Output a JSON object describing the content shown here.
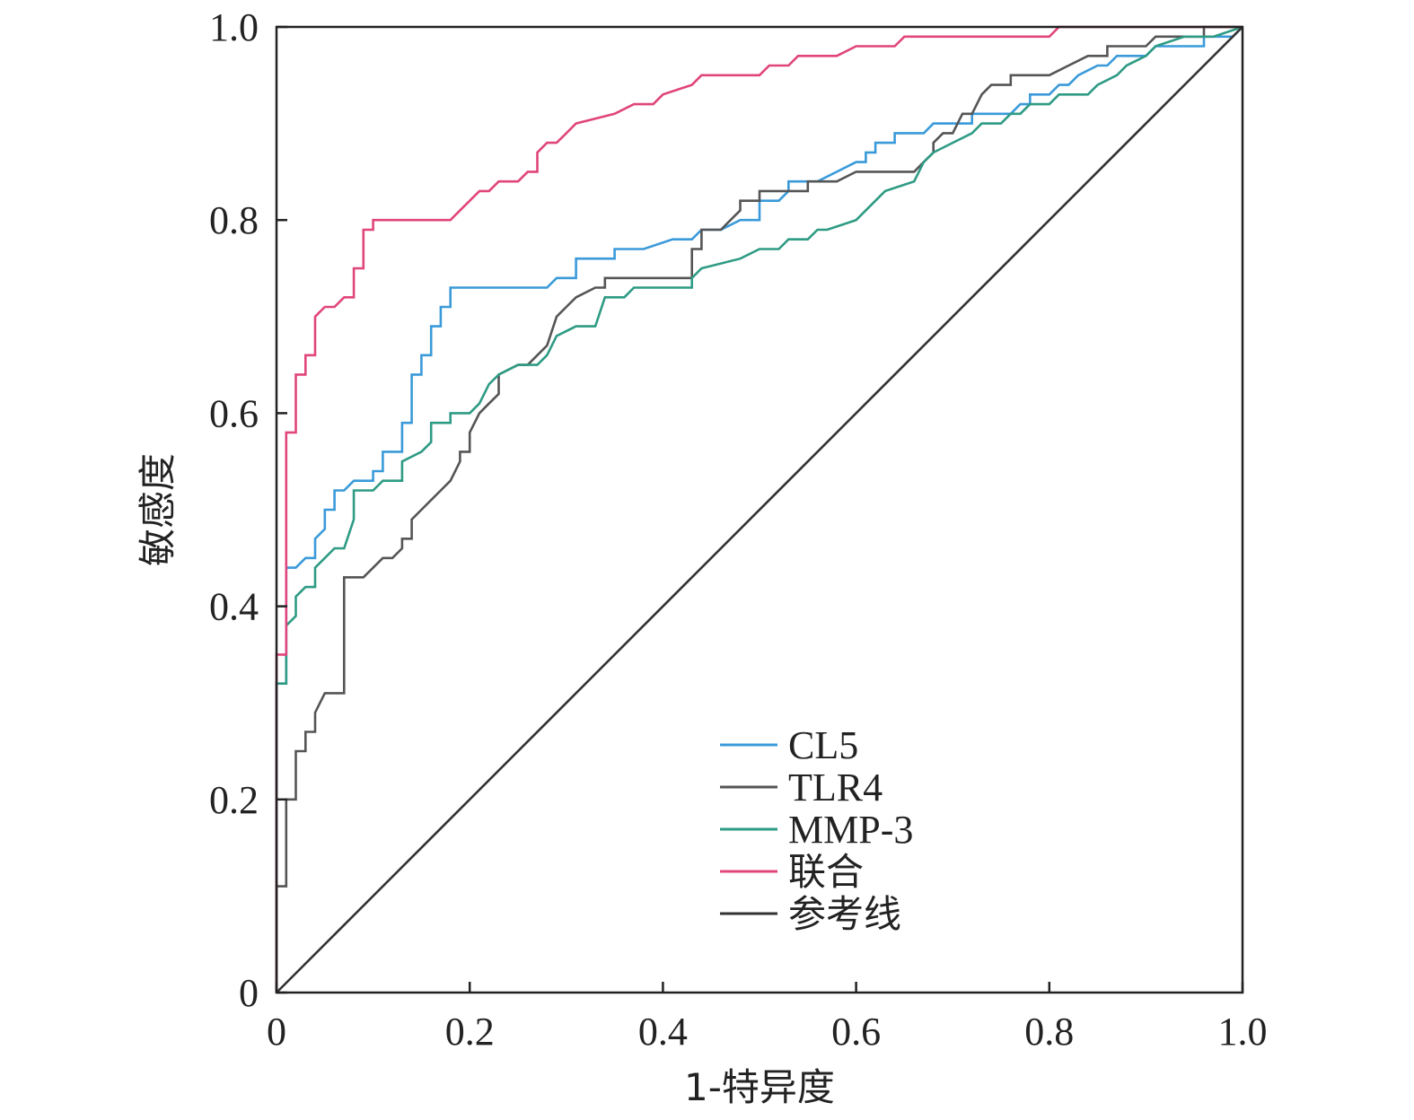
{
  "chart_data": {
    "type": "line",
    "title": "",
    "xlabel": "1-特异度",
    "ylabel": "敏感度",
    "xlim": [
      0,
      1
    ],
    "ylim": [
      0,
      1
    ],
    "x_ticks": [
      "0",
      "0.2",
      "0.4",
      "0.6",
      "0.8",
      "1.0"
    ],
    "y_ticks": [
      "0",
      "0.2",
      "0.4",
      "0.6",
      "0.8",
      "1.0"
    ],
    "grid": false,
    "legend_position": "bottom-center",
    "series": [
      {
        "name": "CL5",
        "color": "#3a9ad9",
        "points": [
          [
            0,
            0
          ],
          [
            0,
            0.32
          ],
          [
            0.01,
            0.32
          ],
          [
            0.01,
            0.44
          ],
          [
            0.02,
            0.44
          ],
          [
            0.03,
            0.45
          ],
          [
            0.04,
            0.45
          ],
          [
            0.04,
            0.47
          ],
          [
            0.05,
            0.48
          ],
          [
            0.05,
            0.5
          ],
          [
            0.06,
            0.5
          ],
          [
            0.06,
            0.52
          ],
          [
            0.07,
            0.52
          ],
          [
            0.08,
            0.53
          ],
          [
            0.1,
            0.53
          ],
          [
            0.1,
            0.54
          ],
          [
            0.11,
            0.54
          ],
          [
            0.11,
            0.56
          ],
          [
            0.13,
            0.56
          ],
          [
            0.13,
            0.59
          ],
          [
            0.14,
            0.59
          ],
          [
            0.14,
            0.64
          ],
          [
            0.15,
            0.64
          ],
          [
            0.15,
            0.66
          ],
          [
            0.16,
            0.66
          ],
          [
            0.16,
            0.69
          ],
          [
            0.17,
            0.69
          ],
          [
            0.17,
            0.71
          ],
          [
            0.18,
            0.71
          ],
          [
            0.18,
            0.73
          ],
          [
            0.28,
            0.73
          ],
          [
            0.29,
            0.74
          ],
          [
            0.31,
            0.74
          ],
          [
            0.31,
            0.76
          ],
          [
            0.35,
            0.76
          ],
          [
            0.35,
            0.77
          ],
          [
            0.38,
            0.77
          ],
          [
            0.41,
            0.78
          ],
          [
            0.43,
            0.78
          ],
          [
            0.44,
            0.79
          ],
          [
            0.46,
            0.79
          ],
          [
            0.48,
            0.8
          ],
          [
            0.5,
            0.8
          ],
          [
            0.5,
            0.82
          ],
          [
            0.52,
            0.82
          ],
          [
            0.53,
            0.83
          ],
          [
            0.53,
            0.84
          ],
          [
            0.54,
            0.84
          ],
          [
            0.56,
            0.84
          ],
          [
            0.58,
            0.85
          ],
          [
            0.6,
            0.86
          ],
          [
            0.61,
            0.86
          ],
          [
            0.61,
            0.87
          ],
          [
            0.62,
            0.87
          ],
          [
            0.62,
            0.88
          ],
          [
            0.64,
            0.88
          ],
          [
            0.64,
            0.89
          ],
          [
            0.66,
            0.89
          ],
          [
            0.67,
            0.89
          ],
          [
            0.68,
            0.9
          ],
          [
            0.72,
            0.9
          ],
          [
            0.72,
            0.91
          ],
          [
            0.76,
            0.91
          ],
          [
            0.77,
            0.92
          ],
          [
            0.78,
            0.92
          ],
          [
            0.78,
            0.93
          ],
          [
            0.8,
            0.93
          ],
          [
            0.81,
            0.94
          ],
          [
            0.82,
            0.94
          ],
          [
            0.83,
            0.95
          ],
          [
            0.85,
            0.96
          ],
          [
            0.86,
            0.96
          ],
          [
            0.87,
            0.97
          ],
          [
            0.9,
            0.97
          ],
          [
            0.91,
            0.98
          ],
          [
            0.96,
            0.98
          ],
          [
            0.96,
            0.99
          ],
          [
            0.99,
            0.99
          ],
          [
            1,
            1
          ]
        ]
      },
      {
        "name": "TLR4",
        "color": "#555555",
        "points": [
          [
            0,
            0
          ],
          [
            0,
            0.11
          ],
          [
            0.01,
            0.11
          ],
          [
            0.01,
            0.2
          ],
          [
            0.02,
            0.2
          ],
          [
            0.02,
            0.25
          ],
          [
            0.03,
            0.25
          ],
          [
            0.03,
            0.27
          ],
          [
            0.04,
            0.27
          ],
          [
            0.04,
            0.29
          ],
          [
            0.05,
            0.31
          ],
          [
            0.07,
            0.31
          ],
          [
            0.07,
            0.43
          ],
          [
            0.09,
            0.43
          ],
          [
            0.1,
            0.44
          ],
          [
            0.11,
            0.45
          ],
          [
            0.12,
            0.45
          ],
          [
            0.13,
            0.46
          ],
          [
            0.13,
            0.47
          ],
          [
            0.14,
            0.47
          ],
          [
            0.14,
            0.49
          ],
          [
            0.15,
            0.5
          ],
          [
            0.16,
            0.51
          ],
          [
            0.17,
            0.52
          ],
          [
            0.18,
            0.53
          ],
          [
            0.19,
            0.55
          ],
          [
            0.19,
            0.56
          ],
          [
            0.2,
            0.56
          ],
          [
            0.2,
            0.58
          ],
          [
            0.21,
            0.6
          ],
          [
            0.22,
            0.61
          ],
          [
            0.23,
            0.62
          ],
          [
            0.23,
            0.64
          ],
          [
            0.25,
            0.65
          ],
          [
            0.26,
            0.65
          ],
          [
            0.27,
            0.66
          ],
          [
            0.28,
            0.67
          ],
          [
            0.29,
            0.7
          ],
          [
            0.3,
            0.71
          ],
          [
            0.31,
            0.72
          ],
          [
            0.33,
            0.73
          ],
          [
            0.34,
            0.73
          ],
          [
            0.34,
            0.74
          ],
          [
            0.39,
            0.74
          ],
          [
            0.43,
            0.74
          ],
          [
            0.43,
            0.77
          ],
          [
            0.44,
            0.77
          ],
          [
            0.44,
            0.79
          ],
          [
            0.46,
            0.79
          ],
          [
            0.47,
            0.8
          ],
          [
            0.48,
            0.81
          ],
          [
            0.48,
            0.82
          ],
          [
            0.5,
            0.82
          ],
          [
            0.5,
            0.83
          ],
          [
            0.55,
            0.83
          ],
          [
            0.55,
            0.84
          ],
          [
            0.58,
            0.84
          ],
          [
            0.6,
            0.85
          ],
          [
            0.66,
            0.85
          ],
          [
            0.67,
            0.86
          ],
          [
            0.68,
            0.87
          ],
          [
            0.68,
            0.88
          ],
          [
            0.69,
            0.89
          ],
          [
            0.7,
            0.89
          ],
          [
            0.71,
            0.91
          ],
          [
            0.72,
            0.91
          ],
          [
            0.73,
            0.93
          ],
          [
            0.74,
            0.94
          ],
          [
            0.76,
            0.94
          ],
          [
            0.76,
            0.95
          ],
          [
            0.8,
            0.95
          ],
          [
            0.82,
            0.96
          ],
          [
            0.84,
            0.97
          ],
          [
            0.86,
            0.97
          ],
          [
            0.86,
            0.98
          ],
          [
            0.9,
            0.98
          ],
          [
            0.91,
            0.99
          ],
          [
            0.96,
            0.99
          ],
          [
            0.96,
            1
          ],
          [
            1,
            1
          ]
        ]
      },
      {
        "name": "MMP-3",
        "color": "#2e9b84",
        "points": [
          [
            0,
            0
          ],
          [
            0,
            0.32
          ],
          [
            0.01,
            0.32
          ],
          [
            0.01,
            0.38
          ],
          [
            0.02,
            0.39
          ],
          [
            0.02,
            0.41
          ],
          [
            0.03,
            0.42
          ],
          [
            0.04,
            0.42
          ],
          [
            0.04,
            0.44
          ],
          [
            0.05,
            0.45
          ],
          [
            0.06,
            0.46
          ],
          [
            0.07,
            0.46
          ],
          [
            0.08,
            0.49
          ],
          [
            0.08,
            0.52
          ],
          [
            0.1,
            0.52
          ],
          [
            0.11,
            0.53
          ],
          [
            0.13,
            0.53
          ],
          [
            0.13,
            0.55
          ],
          [
            0.15,
            0.56
          ],
          [
            0.16,
            0.57
          ],
          [
            0.16,
            0.59
          ],
          [
            0.18,
            0.59
          ],
          [
            0.18,
            0.6
          ],
          [
            0.2,
            0.6
          ],
          [
            0.21,
            0.61
          ],
          [
            0.22,
            0.63
          ],
          [
            0.23,
            0.64
          ],
          [
            0.25,
            0.65
          ],
          [
            0.27,
            0.65
          ],
          [
            0.28,
            0.66
          ],
          [
            0.29,
            0.68
          ],
          [
            0.31,
            0.69
          ],
          [
            0.33,
            0.69
          ],
          [
            0.34,
            0.72
          ],
          [
            0.36,
            0.72
          ],
          [
            0.37,
            0.73
          ],
          [
            0.43,
            0.73
          ],
          [
            0.43,
            0.74
          ],
          [
            0.44,
            0.75
          ],
          [
            0.48,
            0.76
          ],
          [
            0.5,
            0.77
          ],
          [
            0.52,
            0.77
          ],
          [
            0.53,
            0.78
          ],
          [
            0.55,
            0.78
          ],
          [
            0.56,
            0.79
          ],
          [
            0.57,
            0.79
          ],
          [
            0.6,
            0.8
          ],
          [
            0.62,
            0.82
          ],
          [
            0.63,
            0.83
          ],
          [
            0.66,
            0.84
          ],
          [
            0.67,
            0.86
          ],
          [
            0.68,
            0.87
          ],
          [
            0.7,
            0.88
          ],
          [
            0.72,
            0.89
          ],
          [
            0.73,
            0.9
          ],
          [
            0.75,
            0.9
          ],
          [
            0.76,
            0.91
          ],
          [
            0.77,
            0.91
          ],
          [
            0.78,
            0.92
          ],
          [
            0.8,
            0.92
          ],
          [
            0.81,
            0.93
          ],
          [
            0.84,
            0.93
          ],
          [
            0.85,
            0.94
          ],
          [
            0.87,
            0.95
          ],
          [
            0.88,
            0.96
          ],
          [
            0.9,
            0.97
          ],
          [
            0.91,
            0.98
          ],
          [
            0.94,
            0.99
          ],
          [
            0.97,
            0.99
          ],
          [
            1,
            1
          ]
        ]
      },
      {
        "name": "联合",
        "color": "#e0457b",
        "points": [
          [
            0,
            0
          ],
          [
            0,
            0.35
          ],
          [
            0.01,
            0.35
          ],
          [
            0.01,
            0.58
          ],
          [
            0.02,
            0.58
          ],
          [
            0.02,
            0.64
          ],
          [
            0.03,
            0.64
          ],
          [
            0.03,
            0.66
          ],
          [
            0.04,
            0.66
          ],
          [
            0.04,
            0.7
          ],
          [
            0.05,
            0.71
          ],
          [
            0.06,
            0.71
          ],
          [
            0.07,
            0.72
          ],
          [
            0.08,
            0.72
          ],
          [
            0.08,
            0.75
          ],
          [
            0.09,
            0.75
          ],
          [
            0.09,
            0.79
          ],
          [
            0.1,
            0.79
          ],
          [
            0.1,
            0.8
          ],
          [
            0.18,
            0.8
          ],
          [
            0.19,
            0.81
          ],
          [
            0.2,
            0.82
          ],
          [
            0.21,
            0.83
          ],
          [
            0.22,
            0.83
          ],
          [
            0.23,
            0.84
          ],
          [
            0.25,
            0.84
          ],
          [
            0.26,
            0.85
          ],
          [
            0.27,
            0.85
          ],
          [
            0.27,
            0.87
          ],
          [
            0.28,
            0.88
          ],
          [
            0.29,
            0.88
          ],
          [
            0.3,
            0.89
          ],
          [
            0.31,
            0.9
          ],
          [
            0.35,
            0.91
          ],
          [
            0.37,
            0.92
          ],
          [
            0.39,
            0.92
          ],
          [
            0.4,
            0.93
          ],
          [
            0.43,
            0.94
          ],
          [
            0.44,
            0.95
          ],
          [
            0.5,
            0.95
          ],
          [
            0.51,
            0.96
          ],
          [
            0.53,
            0.96
          ],
          [
            0.54,
            0.97
          ],
          [
            0.58,
            0.97
          ],
          [
            0.6,
            0.98
          ],
          [
            0.64,
            0.98
          ],
          [
            0.65,
            0.99
          ],
          [
            0.8,
            0.99
          ],
          [
            0.81,
            1
          ],
          [
            1,
            1
          ]
        ]
      },
      {
        "name": "参考线",
        "color": "#333333",
        "points": [
          [
            0,
            0
          ],
          [
            1,
            1
          ]
        ]
      }
    ]
  }
}
